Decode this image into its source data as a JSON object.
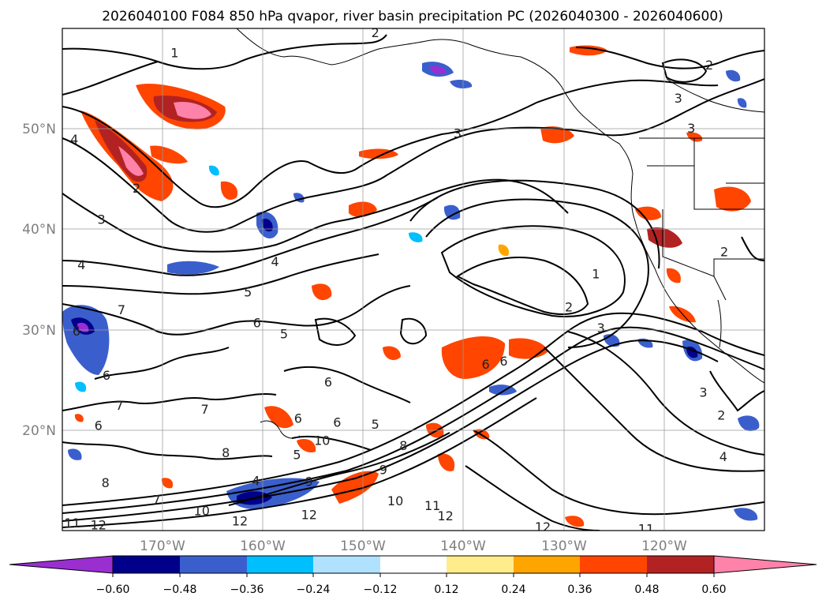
{
  "chart_data": {
    "type": "map-contour",
    "title": "2026040100 F084 850 hPa qvapor, river basin precipitation PC (2026040300 - 2026040600)",
    "lon_range": [
      -180,
      -110
    ],
    "lat_range": [
      10,
      60
    ],
    "x_ticks": [
      "170°W",
      "160°W",
      "150°W",
      "140°W",
      "130°W",
      "120°W"
    ],
    "x_tick_values": [
      -170,
      -160,
      -150,
      -140,
      -130,
      -120
    ],
    "y_ticks": [
      "20°N",
      "30°N",
      "40°N",
      "50°N"
    ],
    "y_tick_values": [
      20,
      30,
      40,
      50
    ],
    "grid": true,
    "colorbar": {
      "ticks": [
        "−0.60",
        "−0.48",
        "−0.36",
        "−0.24",
        "−0.12",
        "0.12",
        "0.24",
        "0.36",
        "0.48",
        "0.60"
      ],
      "colors": [
        "#9a2ed1",
        "#00008b",
        "#3a5fcd",
        "#00bfff",
        "#b0e2ff",
        "#ffffff",
        "#ffec8b",
        "#ffa500",
        "#ff4500",
        "#b22222",
        "#ff82ab"
      ],
      "extend": "both"
    },
    "contour_labels": [
      {
        "text": "1",
        "lon": -168.8,
        "lat": 57.6
      },
      {
        "text": "2",
        "lon": -148.8,
        "lat": 59.6
      },
      {
        "text": "2",
        "lon": -115.5,
        "lat": 56.4
      },
      {
        "text": "3",
        "lon": -118.6,
        "lat": 53.1
      },
      {
        "text": "3",
        "lon": -117.3,
        "lat": 50.1
      },
      {
        "text": "3",
        "lon": -140.6,
        "lat": 49.6
      },
      {
        "text": "4",
        "lon": -178.8,
        "lat": 49.0
      },
      {
        "text": "2",
        "lon": -172.6,
        "lat": 44.1
      },
      {
        "text": "3",
        "lon": -176.1,
        "lat": 41.0
      },
      {
        "text": "4",
        "lon": -178.1,
        "lat": 36.5
      },
      {
        "text": "4",
        "lon": -158.8,
        "lat": 36.8
      },
      {
        "text": "5",
        "lon": -161.5,
        "lat": 33.8
      },
      {
        "text": "1",
        "lon": -126.8,
        "lat": 35.6
      },
      {
        "text": "2",
        "lon": -129.5,
        "lat": 32.3
      },
      {
        "text": "3",
        "lon": -126.3,
        "lat": 30.2
      },
      {
        "text": "2",
        "lon": -114.0,
        "lat": 37.8
      },
      {
        "text": "7",
        "lon": -174.1,
        "lat": 32.0
      },
      {
        "text": "6",
        "lon": -160.6,
        "lat": 30.7
      },
      {
        "text": "5",
        "lon": -157.9,
        "lat": 29.6
      },
      {
        "text": "6",
        "lon": -178.6,
        "lat": 29.9
      },
      {
        "text": "6",
        "lon": -175.6,
        "lat": 25.5
      },
      {
        "text": "6",
        "lon": -137.8,
        "lat": 26.6
      },
      {
        "text": "6",
        "lon": -136.0,
        "lat": 26.9
      },
      {
        "text": "6",
        "lon": -153.5,
        "lat": 24.8
      },
      {
        "text": "7",
        "lon": -174.3,
        "lat": 22.5
      },
      {
        "text": "7",
        "lon": -165.8,
        "lat": 22.1
      },
      {
        "text": "6",
        "lon": -176.4,
        "lat": 20.5
      },
      {
        "text": "6",
        "lon": -156.5,
        "lat": 21.2
      },
      {
        "text": "6",
        "lon": -152.6,
        "lat": 20.8
      },
      {
        "text": "5",
        "lon": -148.8,
        "lat": 20.6
      },
      {
        "text": "10",
        "lon": -154.1,
        "lat": 19.0
      },
      {
        "text": "3",
        "lon": -116.1,
        "lat": 23.8
      },
      {
        "text": "2",
        "lon": -114.3,
        "lat": 21.5
      },
      {
        "text": "4",
        "lon": -114.1,
        "lat": 17.4
      },
      {
        "text": "8",
        "lon": -163.7,
        "lat": 17.8
      },
      {
        "text": "5",
        "lon": -156.6,
        "lat": 17.6
      },
      {
        "text": "8",
        "lon": -175.7,
        "lat": 14.8
      },
      {
        "text": "4",
        "lon": -160.7,
        "lat": 15.0
      },
      {
        "text": "9",
        "lon": -155.4,
        "lat": 14.9
      },
      {
        "text": "9",
        "lon": -148.0,
        "lat": 16.1
      },
      {
        "text": "8",
        "lon": -146.0,
        "lat": 18.5
      },
      {
        "text": "7",
        "lon": -170.6,
        "lat": 13.1
      },
      {
        "text": "10",
        "lon": -166.1,
        "lat": 12.0
      },
      {
        "text": "10",
        "lon": -146.8,
        "lat": 13.0
      },
      {
        "text": "11",
        "lon": -143.1,
        "lat": 12.5
      },
      {
        "text": "12",
        "lon": -162.3,
        "lat": 11.0
      },
      {
        "text": "12",
        "lon": -155.4,
        "lat": 11.6
      },
      {
        "text": "12",
        "lon": -141.8,
        "lat": 11.5
      },
      {
        "text": "12",
        "lon": -176.4,
        "lat": 10.6
      },
      {
        "text": "12",
        "lon": -132.1,
        "lat": 10.4
      },
      {
        "text": "11",
        "lon": -179.0,
        "lat": 10.8
      },
      {
        "text": "11",
        "lon": -121.8,
        "lat": 10.2
      }
    ]
  }
}
